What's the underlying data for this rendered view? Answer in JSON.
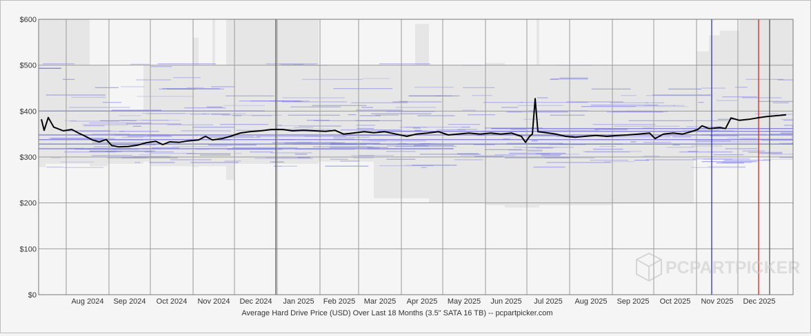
{
  "chart_data": {
    "type": "line",
    "title": "",
    "caption": "Average Hard Drive Price (USD) Over Last 18 Months (3.5\" SATA 16 TB) -- pcpartpicker.com",
    "xlabel": "",
    "ylabel": "",
    "ylim": [
      0,
      600
    ],
    "y_ticks": [
      "$0",
      "$100",
      "$200",
      "$300",
      "$400",
      "$500",
      "$600"
    ],
    "x_ticks": [
      "Aug 2024",
      "Sep 2024",
      "Oct 2024",
      "Nov 2024",
      "Dec 2024",
      "Jan 2025",
      "Feb 2025",
      "Mar 2025",
      "Apr 2025",
      "May 2025",
      "Jun 2025",
      "Jul 2025",
      "Aug 2025",
      "Sep 2025",
      "Oct 2025",
      "Nov 2025",
      "Dec 2025"
    ],
    "grid": true,
    "legend": "none",
    "series": [
      {
        "values": [
          [
            "2024-07-14",
            382
          ],
          [
            "2024-07-16",
            358
          ],
          [
            "2024-07-19",
            386
          ],
          [
            "2024-07-23",
            365
          ],
          [
            "2024-07-30",
            357
          ],
          [
            "2024-08-05",
            360
          ],
          [
            "2024-08-10",
            352
          ],
          [
            "2024-08-15",
            345
          ],
          [
            "2024-08-20",
            337
          ],
          [
            "2024-08-25",
            333
          ],
          [
            "2024-08-30",
            338
          ],
          [
            "2024-09-03",
            325
          ],
          [
            "2024-09-08",
            322
          ],
          [
            "2024-09-15",
            323
          ],
          [
            "2024-09-22",
            326
          ],
          [
            "2024-09-28",
            331
          ],
          [
            "2024-10-05",
            334
          ],
          [
            "2024-10-10",
            327
          ],
          [
            "2024-10-15",
            333
          ],
          [
            "2024-10-22",
            332
          ],
          [
            "2024-10-28",
            335
          ],
          [
            "2024-11-05",
            337
          ],
          [
            "2024-11-10",
            345
          ],
          [
            "2024-11-15",
            337
          ],
          [
            "2024-11-22",
            340
          ],
          [
            "2024-11-28",
            345
          ],
          [
            "2024-12-05",
            352
          ],
          [
            "2024-12-12",
            355
          ],
          [
            "2024-12-20",
            357
          ],
          [
            "2024-12-28",
            360
          ],
          [
            "2025-01-05",
            360
          ],
          [
            "2025-01-12",
            357
          ],
          [
            "2025-01-20",
            358
          ],
          [
            "2025-01-28",
            357
          ],
          [
            "2025-02-05",
            356
          ],
          [
            "2025-02-12",
            358
          ],
          [
            "2025-02-18",
            350
          ],
          [
            "2025-02-25",
            352
          ],
          [
            "2025-03-05",
            355
          ],
          [
            "2025-03-12",
            353
          ],
          [
            "2025-03-20",
            355
          ],
          [
            "2025-03-28",
            350
          ],
          [
            "2025-04-05",
            345
          ],
          [
            "2025-04-12",
            350
          ],
          [
            "2025-04-20",
            352
          ],
          [
            "2025-04-28",
            355
          ],
          [
            "2025-05-05",
            348
          ],
          [
            "2025-05-12",
            350
          ],
          [
            "2025-05-20",
            352
          ],
          [
            "2025-05-28",
            350
          ],
          [
            "2025-06-05",
            352
          ],
          [
            "2025-06-12",
            350
          ],
          [
            "2025-06-20",
            352
          ],
          [
            "2025-06-27",
            345
          ],
          [
            "2025-06-30",
            332
          ],
          [
            "2025-07-03",
            345
          ],
          [
            "2025-07-05",
            350
          ],
          [
            "2025-07-07",
            427
          ],
          [
            "2025-07-09",
            355
          ],
          [
            "2025-07-15",
            353
          ],
          [
            "2025-07-22",
            350
          ],
          [
            "2025-07-29",
            345
          ],
          [
            "2025-08-05",
            343
          ],
          [
            "2025-08-12",
            345
          ],
          [
            "2025-08-20",
            347
          ],
          [
            "2025-08-28",
            345
          ],
          [
            "2025-09-05",
            347
          ],
          [
            "2025-09-12",
            348
          ],
          [
            "2025-09-20",
            350
          ],
          [
            "2025-09-28",
            352
          ],
          [
            "2025-10-02",
            340
          ],
          [
            "2025-10-08",
            350
          ],
          [
            "2025-10-15",
            352
          ],
          [
            "2025-10-22",
            350
          ],
          [
            "2025-10-28",
            355
          ],
          [
            "2025-11-02",
            360
          ],
          [
            "2025-11-05",
            368
          ],
          [
            "2025-11-10",
            362
          ],
          [
            "2025-11-18",
            364
          ],
          [
            "2025-11-22",
            362
          ],
          [
            "2025-11-26",
            385
          ],
          [
            "2025-12-02",
            380
          ],
          [
            "2025-12-09",
            382
          ],
          [
            "2025-12-15",
            385
          ],
          [
            "2025-12-22",
            388
          ],
          [
            "2025-12-29",
            390
          ],
          [
            "2026-01-05",
            392
          ]
        ]
      }
    ],
    "markers": [
      {
        "date": "2024-12-31",
        "color": "#555555"
      },
      {
        "date": "2025-11-12",
        "color": "#3333bb"
      },
      {
        "date": "2025-12-16",
        "color": "#dd2222"
      },
      {
        "date": "2025-12-24",
        "color": "#555555"
      }
    ],
    "watermark": "PCPARTPICKER",
    "colors": {
      "line": "#000000",
      "band": "#e6e6e6",
      "offers": "#6666dd",
      "grid": "#9a9a9a"
    }
  }
}
